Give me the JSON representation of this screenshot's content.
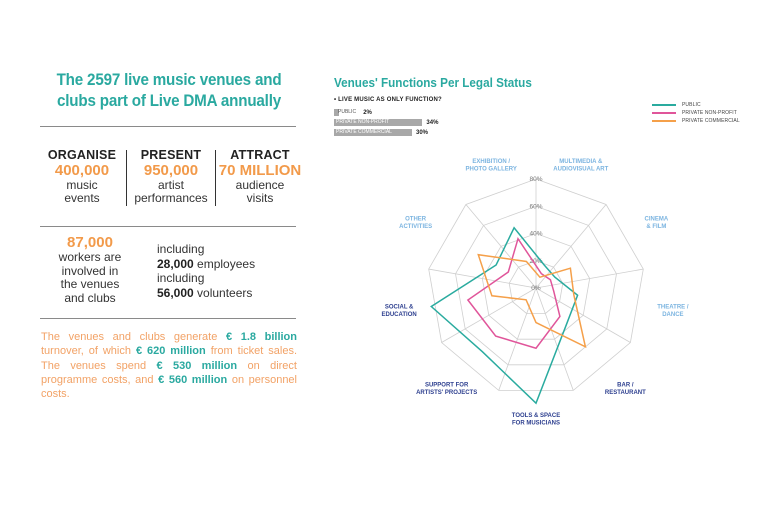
{
  "left": {
    "headline_line1": "The 2597 live music venues and",
    "headline_line2": "clubs part of Live DMA annually",
    "stats": [
      {
        "label": "ORGANISE",
        "value": "400,000",
        "desc1": "music",
        "desc2": "events"
      },
      {
        "label": "PRESENT",
        "value": "950,000",
        "desc1": "artist",
        "desc2": "performances"
      },
      {
        "label": "ATTRACT",
        "value": "70 MILLION",
        "desc1": "audience",
        "desc2": "visits"
      }
    ],
    "workers": {
      "value": "87,000",
      "desc": [
        "workers are",
        "involved in",
        "the venues",
        "and clubs"
      ]
    },
    "including": [
      {
        "prefix": "including",
        "value": "28,000",
        "suffix": " employees"
      },
      {
        "prefix": "including",
        "value": "56,000",
        "suffix": " volunteers"
      }
    ],
    "finance": {
      "t1": "The venues and clubs generate ",
      "b1": "€ 1.8 billion",
      "t2": " turnover, of which ",
      "b2": "€ 620 million",
      "t3": " from ticket sales. The venues spend ",
      "b3": "€ 530 million",
      "t4": " on direct programme costs, and ",
      "b4": "€ 560 million",
      "t5": " on personnel costs."
    }
  },
  "colors": {
    "teal": "#2aa9a0",
    "orange": "#f29a4a",
    "public": "#2aab9f",
    "nonprofit": "#e0559a",
    "commercial": "#f5a04a",
    "axis_light": "#7bb4e0",
    "axis_dark": "#2d3f8f"
  },
  "chart_data": [
    {
      "type": "bar",
      "title": "• LIVE MUSIC AS ONLY FUNCTION?",
      "categories": [
        "PUBLIC",
        "PRIVATE NON-PROFIT",
        "PRIVATE COMMERCIAL"
      ],
      "values": [
        2,
        34,
        30
      ],
      "value_labels": [
        "2%",
        "34%",
        "30%"
      ],
      "orientation": "horizontal"
    },
    {
      "type": "radar",
      "title": "Venues' Functions Per Legal Status",
      "categories": [
        "MULTIMEDIA & AUDIOVISUAL ART",
        "CINEMA & FILM",
        "THEATRE / DANCE",
        "BAR / RESTAURANT",
        "TOOLS & SPACE FOR MUSICIANS",
        "SUPPORT FOR ARTISTS' PROJECTS",
        "SOCIAL & EDUCATION",
        "OTHER ACTIVITIES",
        "EXHIBITION / PHOTO GALLERY"
      ],
      "category_label_lines": [
        [
          "MULTIMEDIA &",
          "AUDIOVISUAL ART"
        ],
        [
          "CINEMA",
          "& FILM"
        ],
        [
          "THEATRE /",
          "DANCE"
        ],
        [
          "BAR /",
          "RESTAURANT"
        ],
        [
          "TOOLS & SPACE",
          "FOR MUSICIANS"
        ],
        [
          "SUPPORT FOR",
          "ARTISTS' PROJECTS"
        ],
        [
          "SOCIAL &",
          "EDUCATION"
        ],
        [
          "OTHER",
          "ACTIVITIES"
        ],
        [
          "EXHIBITION /",
          "PHOTO GALLERY"
        ]
      ],
      "category_label_tone": [
        "light",
        "light",
        "light",
        "dark",
        "dark",
        "dark",
        "dark",
        "light",
        "light"
      ],
      "ticks": [
        "0%",
        "20%",
        "40%",
        "60%",
        "80%"
      ],
      "range": [
        0,
        80
      ],
      "series": [
        {
          "name": "PUBLIC",
          "color_key": "public",
          "values": [
            19,
            17,
            33,
            37,
            90,
            65,
            83,
            36,
            50
          ]
        },
        {
          "name": "PRIVATE NON-PROFIT",
          "color_key": "nonprofit",
          "values": [
            12,
            13,
            14,
            29,
            47,
            49,
            54,
            25,
            41
          ]
        },
        {
          "name": "PRIVATE COMMERCIAL",
          "color_key": "commercial",
          "values": [
            9,
            31,
            30,
            60,
            27,
            12,
            35,
            52,
            22
          ]
        }
      ],
      "legend": "top-right"
    }
  ]
}
